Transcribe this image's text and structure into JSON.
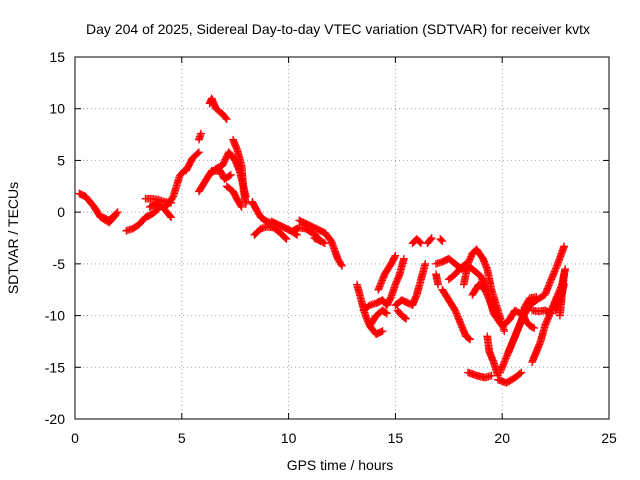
{
  "chart_data": {
    "type": "scatter",
    "title": "Day 204 of 2025, Sidereal Day-to-day VTEC variation (SDTVAR) for receiver kvtx",
    "xlabel": "GPS time / hours",
    "ylabel": "SDTVAR / TECUs",
    "xlim": [
      0,
      25
    ],
    "ylim": [
      -20,
      15
    ],
    "xticks": [
      0,
      5,
      10,
      15,
      20,
      25
    ],
    "yticks": [
      -20,
      -15,
      -10,
      -5,
      0,
      5,
      10,
      15
    ],
    "grid": true,
    "marker": "+",
    "color": "#ff0000",
    "tracks": [
      [
        [
          0.2,
          1.8
        ],
        [
          0.5,
          1.5
        ],
        [
          0.9,
          0.5
        ],
        [
          1.2,
          -0.5
        ],
        [
          1.6,
          -1.0
        ],
        [
          1.9,
          -0.3
        ]
      ],
      [
        [
          1.3,
          -0.5
        ],
        [
          1.6,
          -0.8
        ],
        [
          2.0,
          0.0
        ]
      ],
      [
        [
          2.4,
          -1.8
        ],
        [
          2.7,
          -1.6
        ],
        [
          3.0,
          -1.2
        ],
        [
          3.3,
          -0.5
        ],
        [
          3.6,
          -0.2
        ],
        [
          3.9,
          0.3
        ]
      ],
      [
        [
          3.3,
          1.3
        ],
        [
          3.6,
          1.3
        ],
        [
          3.9,
          1.2
        ],
        [
          4.2,
          1.0
        ],
        [
          4.5,
          0.9
        ]
      ],
      [
        [
          3.5,
          0.5
        ],
        [
          3.8,
          0.8
        ],
        [
          4.1,
          0.5
        ],
        [
          4.3,
          0.0
        ],
        [
          4.5,
          -0.5
        ]
      ],
      [
        [
          4.3,
          0.6
        ],
        [
          4.6,
          1.5
        ],
        [
          4.9,
          3.5
        ],
        [
          5.1,
          4.0
        ]
      ],
      [
        [
          5.2,
          4.0
        ],
        [
          5.5,
          5.2
        ],
        [
          5.8,
          5.8
        ]
      ],
      [
        [
          5.8,
          7.0
        ],
        [
          5.9,
          7.6
        ]
      ],
      [
        [
          6.3,
          10.5
        ],
        [
          6.4,
          11.0
        ],
        [
          6.6,
          10.0
        ],
        [
          6.9,
          9.5
        ],
        [
          7.1,
          9.0
        ]
      ],
      [
        [
          5.8,
          2.0
        ],
        [
          6.1,
          3.0
        ],
        [
          6.4,
          4.0
        ],
        [
          6.8,
          4.0
        ],
        [
          7.0,
          3.2
        ],
        [
          7.3,
          3.6
        ]
      ],
      [
        [
          6.4,
          3.8
        ],
        [
          6.6,
          4.2
        ],
        [
          6.9,
          4.5
        ],
        [
          7.2,
          5.8
        ],
        [
          7.5,
          5.0
        ],
        [
          7.7,
          4.0
        ],
        [
          8.0,
          1.5
        ]
      ],
      [
        [
          7.4,
          7.0
        ],
        [
          7.6,
          6.0
        ],
        [
          7.8,
          4.5
        ],
        [
          7.9,
          2.0
        ],
        [
          8.0,
          0.8
        ]
      ],
      [
        [
          7.1,
          2.5
        ],
        [
          7.4,
          2.0
        ],
        [
          7.6,
          1.2
        ],
        [
          7.8,
          0.5
        ]
      ],
      [
        [
          8.3,
          1.0
        ],
        [
          8.5,
          0.2
        ],
        [
          8.7,
          -0.5
        ],
        [
          8.9,
          -0.8
        ],
        [
          9.1,
          -1.0
        ],
        [
          9.3,
          -1.2
        ]
      ],
      [
        [
          8.4,
          -2.2
        ],
        [
          8.7,
          -1.6
        ],
        [
          9.0,
          -1.4
        ],
        [
          9.3,
          -1.5
        ],
        [
          9.6,
          -2.0
        ],
        [
          9.9,
          -2.6
        ]
      ],
      [
        [
          9.2,
          -0.9
        ],
        [
          9.5,
          -1.2
        ],
        [
          9.8,
          -1.5
        ],
        [
          10.1,
          -1.8
        ],
        [
          10.4,
          -2.2
        ]
      ],
      [
        [
          10.2,
          -1.8
        ],
        [
          10.5,
          -1.5
        ],
        [
          10.8,
          -1.6
        ],
        [
          11.1,
          -2.0
        ],
        [
          11.4,
          -2.5
        ]
      ],
      [
        [
          10.5,
          -0.8
        ],
        [
          10.9,
          -1.2
        ],
        [
          11.3,
          -1.6
        ],
        [
          11.7,
          -2.0
        ],
        [
          12.0,
          -2.8
        ],
        [
          12.3,
          -4.5
        ],
        [
          12.5,
          -5.2
        ]
      ],
      [
        [
          11.2,
          -2.5
        ],
        [
          11.5,
          -2.8
        ],
        [
          11.7,
          -3.0
        ]
      ],
      [
        [
          13.2,
          -7.0
        ],
        [
          13.4,
          -8.5
        ],
        [
          13.6,
          -10.0
        ],
        [
          13.8,
          -11.0
        ],
        [
          14.1,
          -11.8
        ],
        [
          14.4,
          -11.5
        ]
      ],
      [
        [
          13.5,
          -9.5
        ],
        [
          13.8,
          -9.0
        ],
        [
          14.1,
          -8.8
        ],
        [
          14.4,
          -8.5
        ],
        [
          14.6,
          -9.0
        ]
      ],
      [
        [
          13.8,
          -11.0
        ],
        [
          14.1,
          -10.0
        ],
        [
          14.4,
          -9.5
        ],
        [
          14.6,
          -9.8
        ]
      ],
      [
        [
          14.6,
          -9.0
        ],
        [
          14.8,
          -8.2
        ],
        [
          15.0,
          -7.0
        ],
        [
          15.2,
          -6.0
        ],
        [
          15.4,
          -4.5
        ]
      ],
      [
        [
          14.2,
          -7.5
        ],
        [
          14.5,
          -6.0
        ],
        [
          14.8,
          -5.0
        ],
        [
          15.0,
          -4.2
        ]
      ],
      [
        [
          15.0,
          -9.0
        ],
        [
          15.3,
          -8.5
        ],
        [
          15.6,
          -8.8
        ],
        [
          15.8,
          -9.0
        ],
        [
          16.0,
          -8.0
        ],
        [
          16.2,
          -6.5
        ],
        [
          16.4,
          -5.0
        ]
      ],
      [
        [
          15.1,
          -9.5
        ],
        [
          15.3,
          -10.0
        ],
        [
          15.5,
          -10.3
        ]
      ],
      [
        [
          15.8,
          -3.0
        ],
        [
          16.0,
          -2.6
        ],
        [
          16.2,
          -3.0
        ]
      ],
      [
        [
          16.5,
          -3.0
        ],
        [
          16.7,
          -2.5
        ]
      ],
      [
        [
          17.1,
          -2.6
        ],
        [
          17.2,
          -2.8
        ]
      ],
      [
        [
          16.9,
          -5.0
        ],
        [
          17.2,
          -4.8
        ],
        [
          17.5,
          -4.5
        ],
        [
          17.8,
          -5.0
        ],
        [
          18.1,
          -5.5
        ],
        [
          18.3,
          -5.3
        ]
      ],
      [
        [
          16.9,
          -6.0
        ],
        [
          17.0,
          -7.0
        ]
      ],
      [
        [
          17.2,
          -7.5
        ],
        [
          17.5,
          -8.5
        ],
        [
          17.8,
          -9.5
        ],
        [
          18.1,
          -11.0
        ],
        [
          18.3,
          -12.0
        ],
        [
          18.5,
          -12.3
        ]
      ],
      [
        [
          17.5,
          -6.5
        ],
        [
          17.8,
          -6.0
        ],
        [
          18.0,
          -5.5
        ],
        [
          18.3,
          -5.0
        ],
        [
          18.6,
          -5.5
        ],
        [
          19.0,
          -6.2
        ],
        [
          19.3,
          -7.5
        ],
        [
          19.6,
          -9.8
        ],
        [
          20.0,
          -11.0
        ],
        [
          20.3,
          -10.5
        ],
        [
          20.6,
          -9.5
        ],
        [
          21.0,
          -10.0
        ]
      ],
      [
        [
          18.2,
          -7.0
        ],
        [
          18.4,
          -5.0
        ],
        [
          18.6,
          -4.0
        ],
        [
          18.8,
          -3.6
        ],
        [
          19.1,
          -4.5
        ],
        [
          19.3,
          -5.5
        ],
        [
          19.5,
          -7.5
        ],
        [
          19.8,
          -9.5
        ],
        [
          20.1,
          -11.5
        ]
      ],
      [
        [
          18.6,
          -8.0
        ],
        [
          18.9,
          -7.0
        ],
        [
          19.2,
          -7.5
        ],
        [
          19.5,
          -9.0
        ],
        [
          19.7,
          -10.0
        ]
      ],
      [
        [
          19.3,
          -12.0
        ],
        [
          19.4,
          -13.5
        ],
        [
          19.6,
          -14.5
        ],
        [
          19.8,
          -15.8
        ]
      ],
      [
        [
          18.4,
          -15.5
        ],
        [
          18.8,
          -15.8
        ],
        [
          19.2,
          -16.0
        ],
        [
          19.5,
          -15.8
        ]
      ],
      [
        [
          19.8,
          -16.2
        ],
        [
          20.2,
          -16.5
        ],
        [
          20.6,
          -16.0
        ],
        [
          20.9,
          -15.5
        ]
      ],
      [
        [
          19.9,
          -15.5
        ],
        [
          20.2,
          -14.0
        ],
        [
          20.5,
          -12.5
        ],
        [
          20.8,
          -11.0
        ],
        [
          21.0,
          -10.0
        ],
        [
          21.3,
          -9.0
        ],
        [
          21.6,
          -8.5
        ],
        [
          22.0,
          -8.0
        ],
        [
          22.3,
          -6.5
        ],
        [
          22.6,
          -5.0
        ],
        [
          22.9,
          -3.3
        ]
      ],
      [
        [
          20.3,
          -13.5
        ],
        [
          20.6,
          -12.0
        ],
        [
          20.9,
          -10.5
        ],
        [
          21.1,
          -9.0
        ],
        [
          21.3,
          -8.3
        ],
        [
          21.6,
          -8.2
        ]
      ],
      [
        [
          20.9,
          -9.5
        ],
        [
          21.1,
          -10.5
        ],
        [
          21.3,
          -11.0
        ],
        [
          21.5,
          -11.2
        ]
      ],
      [
        [
          21.4,
          -14.5
        ],
        [
          21.6,
          -13.5
        ],
        [
          21.8,
          -12.5
        ],
        [
          22.0,
          -11.0
        ],
        [
          22.2,
          -10.0
        ],
        [
          22.4,
          -9.0
        ],
        [
          22.6,
          -8.0
        ],
        [
          22.8,
          -7.0
        ],
        [
          22.9,
          -6.0
        ]
      ],
      [
        [
          21.4,
          -9.5
        ],
        [
          21.7,
          -9.6
        ],
        [
          22.0,
          -9.5
        ],
        [
          22.3,
          -9.8
        ]
      ],
      [
        [
          22.5,
          -9.5
        ],
        [
          22.7,
          -8.5
        ],
        [
          22.9,
          -7.0
        ]
      ],
      [
        [
          22.7,
          -10.0
        ],
        [
          22.8,
          -8.0
        ],
        [
          22.9,
          -6.0
        ],
        [
          22.95,
          -5.5
        ]
      ]
    ]
  }
}
